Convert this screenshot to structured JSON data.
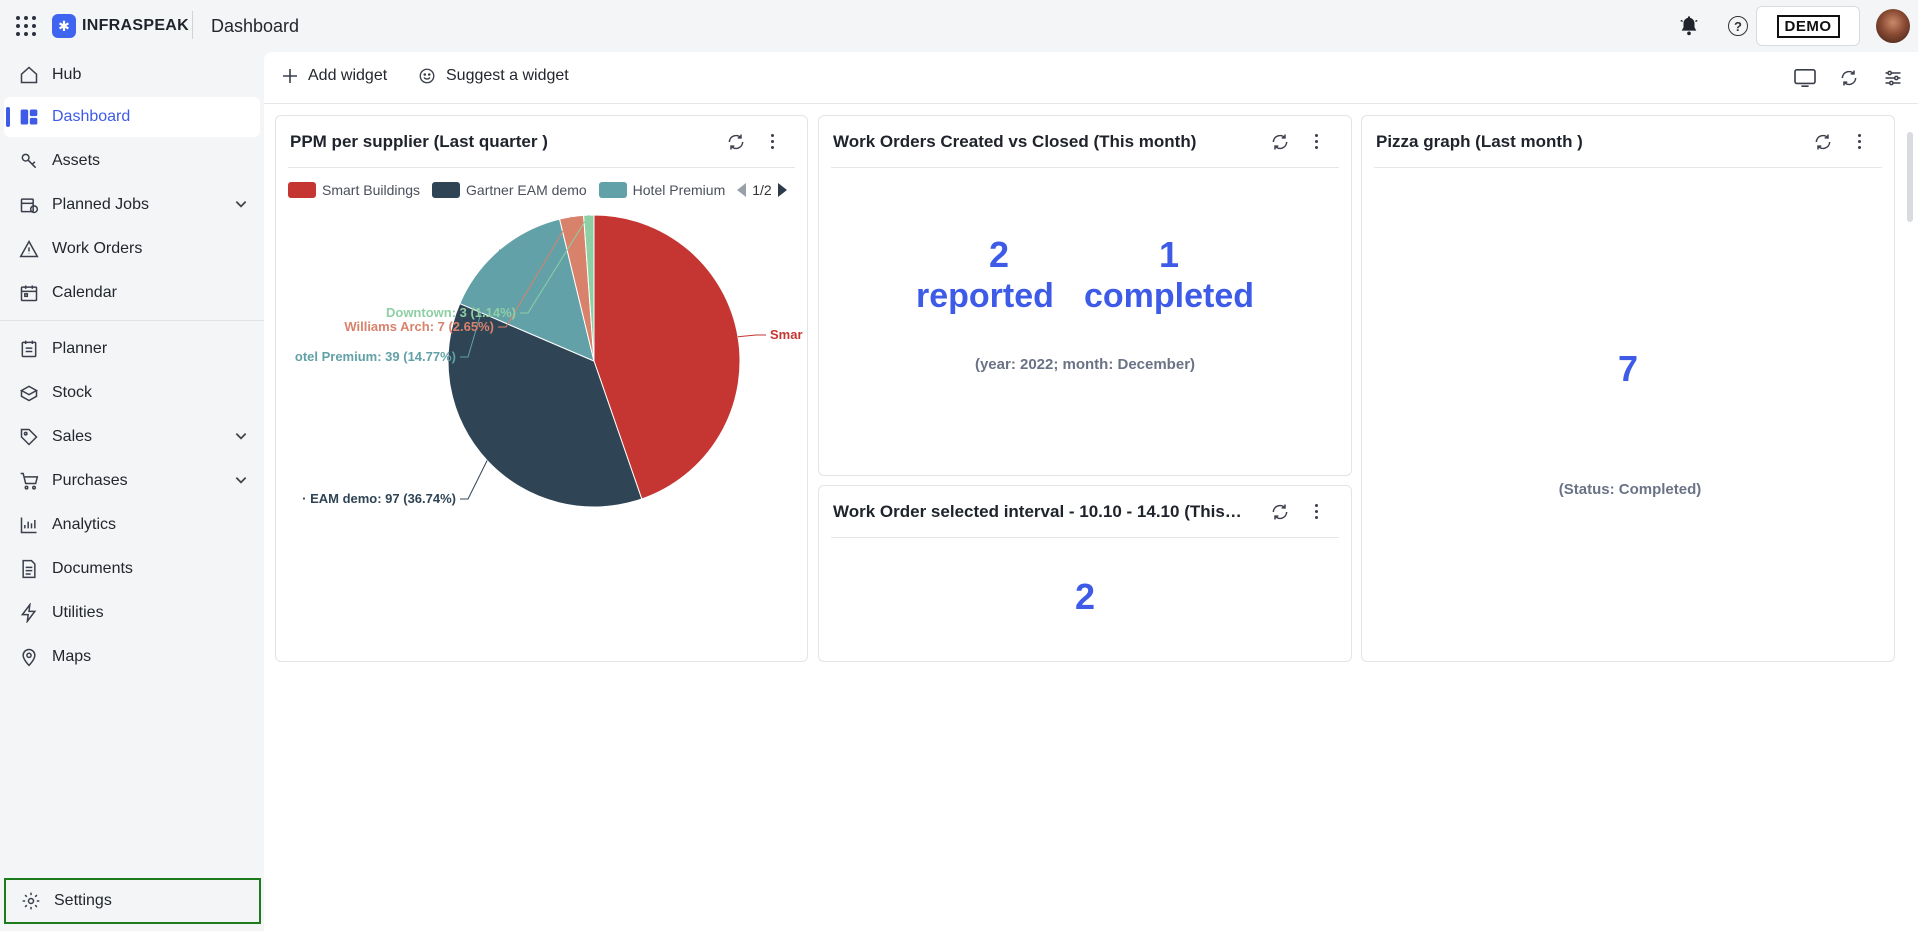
{
  "header": {
    "brand": "INFRASPEAK",
    "page_title": "Dashboard",
    "company_badge": "DEMO"
  },
  "sidebar": {
    "items": [
      {
        "label": "Hub",
        "icon": "home-icon"
      },
      {
        "label": "Dashboard",
        "icon": "dashboard-icon",
        "active": true
      },
      {
        "label": "Assets",
        "icon": "assets-icon"
      },
      {
        "label": "Planned Jobs",
        "icon": "planned-jobs-icon",
        "expandable": true
      },
      {
        "label": "Work Orders",
        "icon": "warning-icon"
      },
      {
        "label": "Calendar",
        "icon": "calendar-icon"
      },
      {
        "label": "Planner",
        "icon": "planner-icon"
      },
      {
        "label": "Stock",
        "icon": "stock-icon"
      },
      {
        "label": "Sales",
        "icon": "tag-icon",
        "expandable": true
      },
      {
        "label": "Purchases",
        "icon": "cart-icon",
        "expandable": true
      },
      {
        "label": "Analytics",
        "icon": "analytics-icon"
      },
      {
        "label": "Documents",
        "icon": "document-icon"
      },
      {
        "label": "Utilities",
        "icon": "bolt-icon"
      },
      {
        "label": "Maps",
        "icon": "map-pin-icon"
      }
    ],
    "settings_label": "Settings"
  },
  "toolbar": {
    "add_widget": "Add widget",
    "suggest_widget": "Suggest a widget"
  },
  "widgets": {
    "ppm": {
      "title": "PPM per supplier (Last quarter )",
      "legend": [
        {
          "name": "Smart Buildings",
          "color": "#c53632"
        },
        {
          "name": "Gartner EAM demo",
          "color": "#2f4454"
        },
        {
          "name": "Hotel Premium",
          "color": "#62a1a8"
        }
      ],
      "legend_page": "1/2"
    },
    "created_closed": {
      "title": "Work Orders Created vs Closed (This month)",
      "reported_value": "2",
      "completed_value": "1",
      "reported_label": "reported",
      "completed_label": "completed",
      "note": "(year: 2022; month: December)"
    },
    "pizza": {
      "title": "Pizza graph (Last month )",
      "value": "7",
      "note": "(Status: Completed)"
    },
    "interval": {
      "title": "Work Order selected interval - 10.10 - 14.10 (This ...",
      "value": "2"
    }
  },
  "chart_data": {
    "type": "pie",
    "title": "PPM per supplier (Last quarter )",
    "slices": [
      {
        "name": "Smart Buildings",
        "value": 118,
        "percent": 44.7,
        "color": "#c53632",
        "label": "Smar"
      },
      {
        "name": "Gartner EAM demo",
        "value": 97,
        "percent": 36.74,
        "color": "#2f4454",
        "label": "· EAM demo: 97 (36.74%)"
      },
      {
        "name": "Hotel Premium",
        "value": 39,
        "percent": 14.77,
        "color": "#62a1a8",
        "label": "otel Premium: 39 (14.77%)"
      },
      {
        "name": "Williams Arch",
        "value": 7,
        "percent": 2.65,
        "color": "#d9826b",
        "label": "Williams Arch: 7 (2.65%)"
      },
      {
        "name": "Downtown",
        "value": 3,
        "percent": 1.14,
        "color": "#8fcfa4",
        "label": "Downtown: 3 (1.14%)"
      }
    ]
  }
}
